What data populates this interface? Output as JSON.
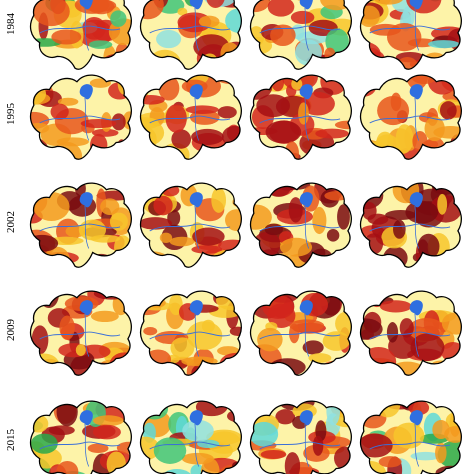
{
  "row_labels": [
    "1984",
    "1995",
    "2002",
    "2009",
    "2015"
  ]
}
